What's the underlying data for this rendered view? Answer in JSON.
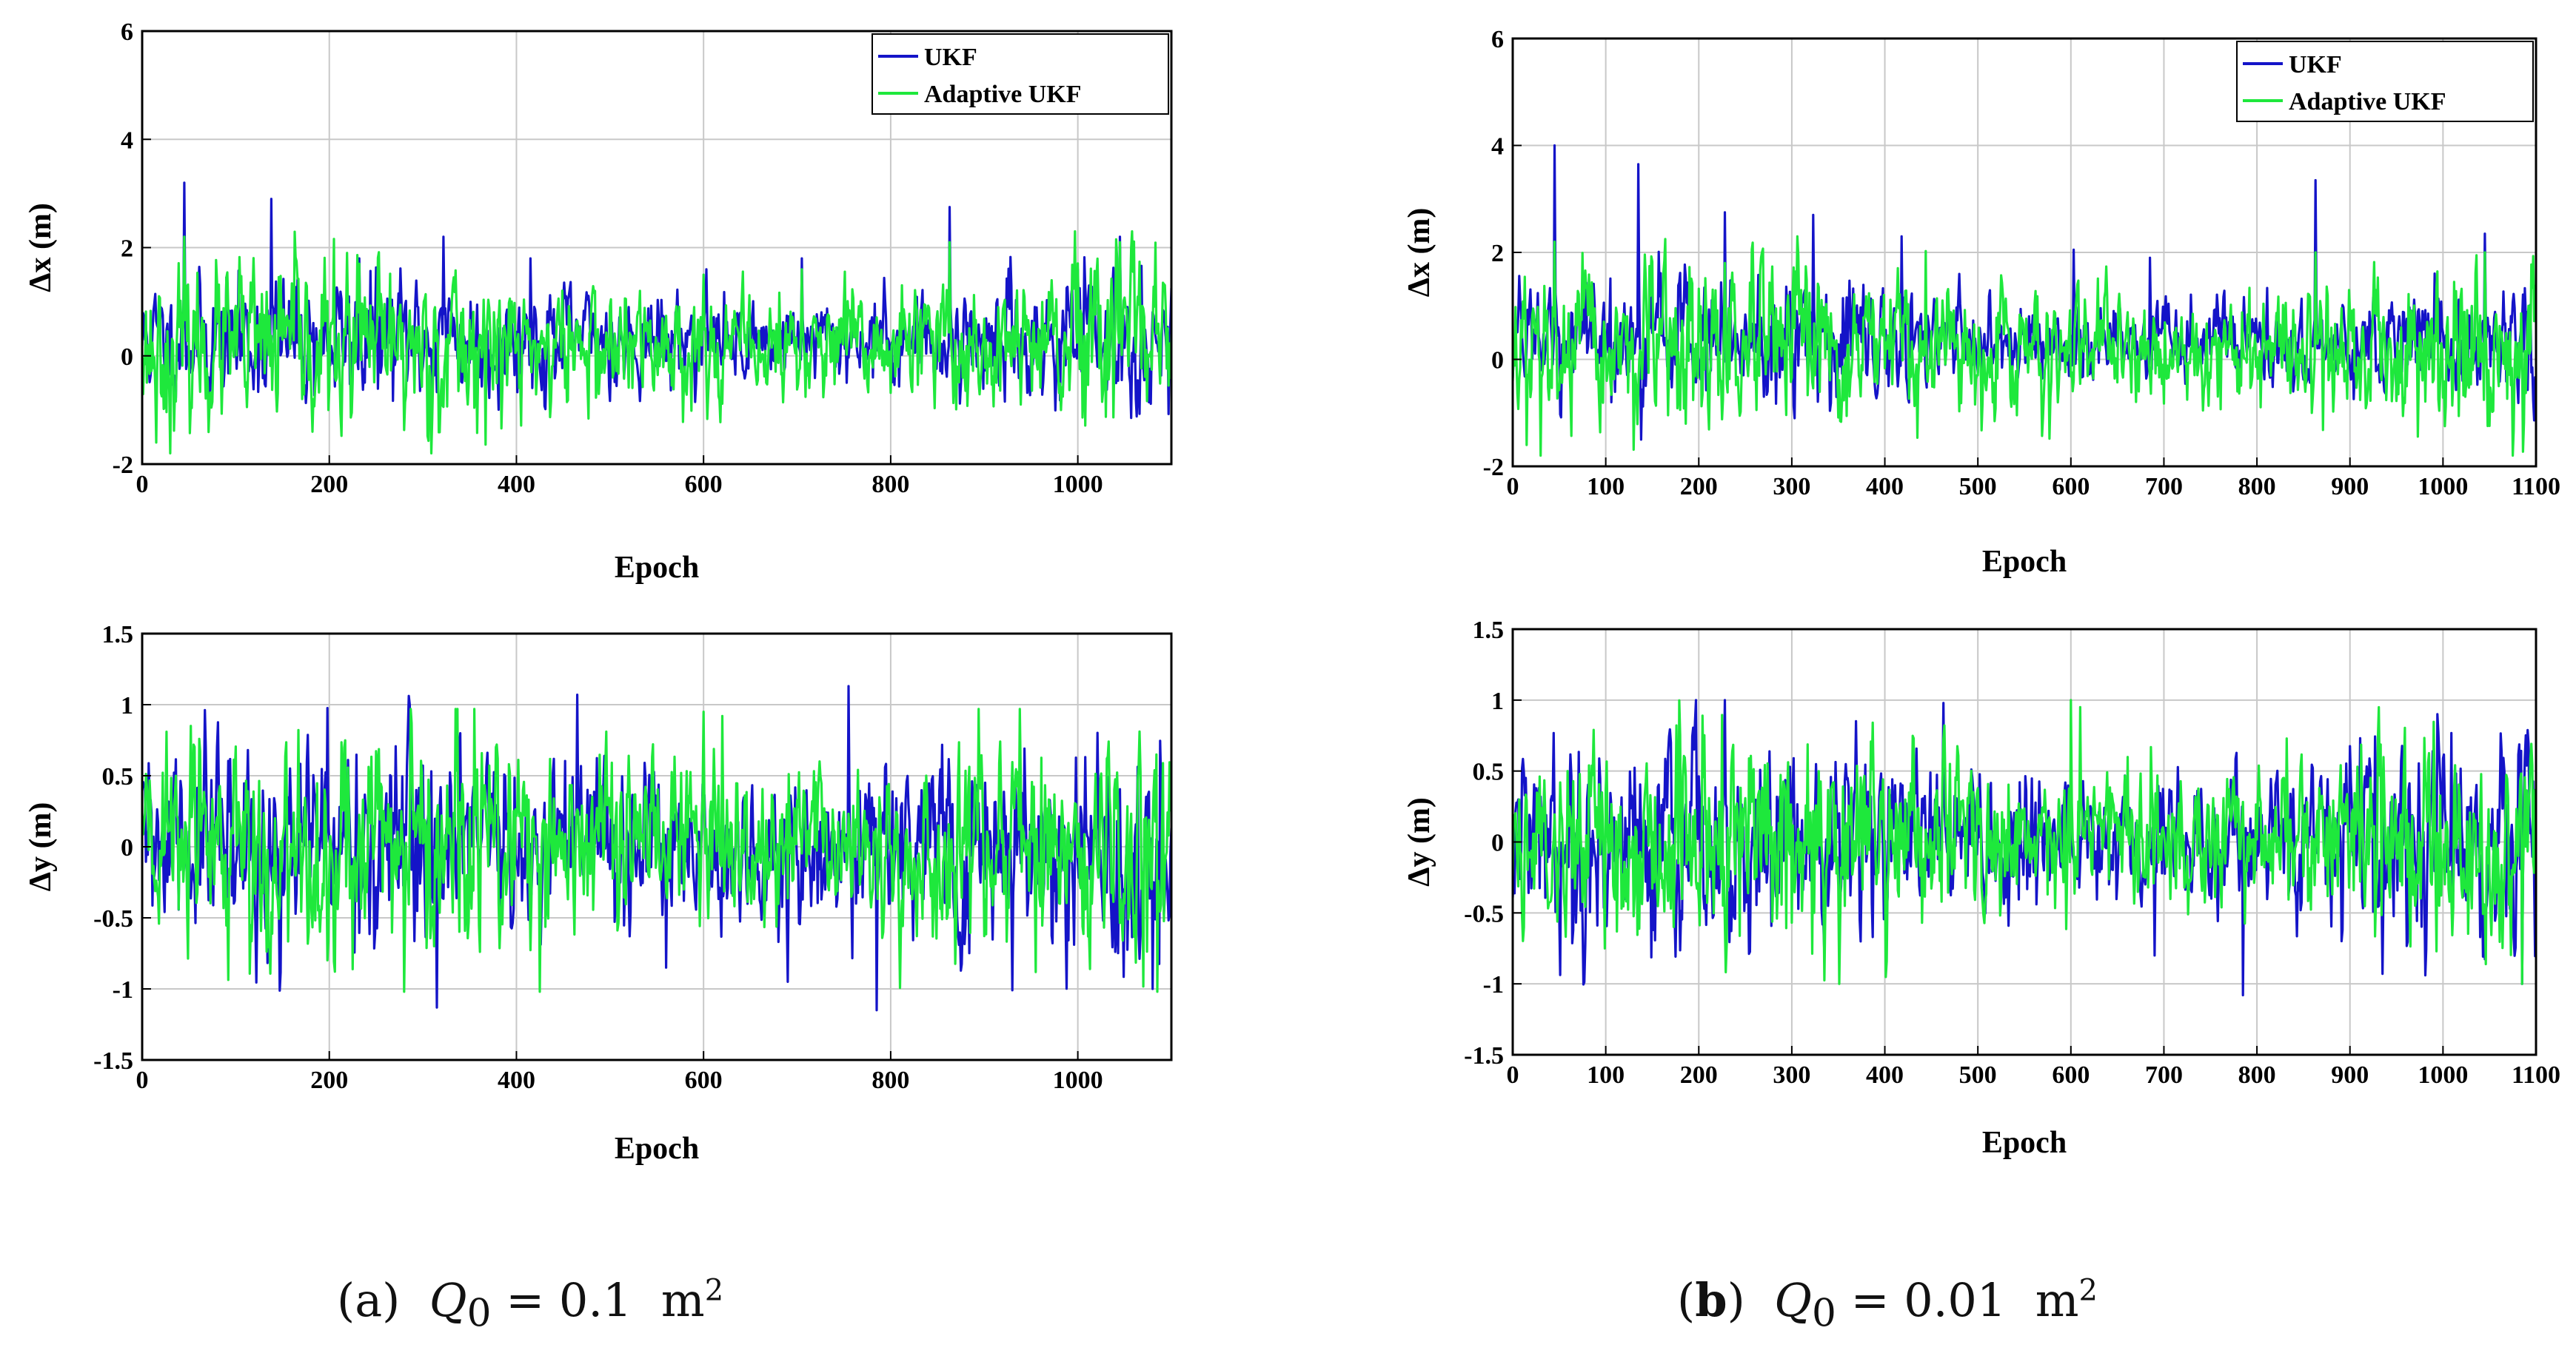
{
  "colors": {
    "ukf": "#1414c8",
    "adaptive_ukf": "#1ee83c",
    "grid": "#c8c8c8",
    "axes": "#000000"
  },
  "captions": [
    {
      "label": "a",
      "symbol": "Q",
      "subscript": "0",
      "equals": "=",
      "value": "0.1",
      "unit": "m",
      "unit_exp": "2"
    },
    {
      "label": "b",
      "symbol": "Q",
      "subscript": "0",
      "equals": "=",
      "value": "0.01",
      "unit": "m",
      "unit_exp": "2"
    }
  ],
  "chart_data": [
    {
      "id": "a-dx",
      "type": "line",
      "panel": "a",
      "title": "",
      "xlabel": "Epoch",
      "ylabel": "Δx (m)",
      "xlim": [
        0,
        1100
      ],
      "ylim": [
        -2,
        6
      ],
      "xticks": [
        0,
        200,
        400,
        600,
        800,
        1000
      ],
      "yticks": [
        -2,
        0,
        2,
        4,
        6
      ],
      "grid": true,
      "legend": "top-right",
      "series": [
        {
          "name": "UKF",
          "color": "#1414c8",
          "seed": 11,
          "baseline": 0.3,
          "noise": 0.42,
          "clip": [
            -1.5,
            3.2
          ],
          "spikes": [
            [
              45,
              3.2
            ],
            [
              138,
              2.9
            ],
            [
              232,
              1.8
            ],
            [
              322,
              2.2
            ],
            [
              415,
              1.8
            ],
            [
              603,
              1.6
            ],
            [
              705,
              1.8
            ],
            [
              863,
              2.75
            ],
            [
              1000,
              1.6
            ],
            [
              1045,
              2.2
            ]
          ]
        },
        {
          "name": "Adaptive UKF",
          "color": "#1ee83c",
          "seed": 23,
          "baseline": 0.15,
          "noise": 0.55,
          "clip": [
            -1.8,
            2.3
          ],
          "spikes": [
            [
              15,
              -1.6
            ],
            [
              30,
              -1.8
            ],
            [
              45,
              2.2
            ],
            [
              232,
              1.7
            ],
            [
              600,
              1.5
            ],
            [
              705,
              1.6
            ],
            [
              863,
              2.1
            ],
            [
              1045,
              2.1
            ]
          ]
        }
      ]
    },
    {
      "id": "a-dy",
      "type": "line",
      "panel": "a",
      "title": "",
      "xlabel": "Epoch",
      "ylabel": "Δy (m)",
      "xlim": [
        0,
        1100
      ],
      "ylim": [
        -1.5,
        1.5
      ],
      "xticks": [
        0,
        200,
        400,
        600,
        800,
        1000
      ],
      "yticks": [
        -1.5,
        -1,
        -0.5,
        0,
        0.5,
        1,
        1.5
      ],
      "grid": true,
      "legend": "none",
      "series": [
        {
          "name": "UKF",
          "color": "#1414c8",
          "seed": 31,
          "baseline": 0.0,
          "noise": 0.28,
          "clip": [
            -1.15,
            1.15
          ],
          "spikes": [
            [
              465,
              1.07
            ],
            [
              560,
              -0.85
            ],
            [
              755,
              1.13
            ],
            [
              785,
              -1.15
            ],
            [
              690,
              -0.95
            ],
            [
              1080,
              -1.0
            ]
          ]
        },
        {
          "name": "Adaptive UKF",
          "color": "#1ee83c",
          "seed": 43,
          "baseline": 0.02,
          "noise": 0.3,
          "clip": [
            -1.02,
            0.97
          ],
          "spikes": [
            [
              355,
              0.97
            ],
            [
              600,
              0.95
            ],
            [
              620,
              0.92
            ],
            [
              1085,
              -1.02
            ]
          ]
        }
      ]
    },
    {
      "id": "b-dx",
      "type": "line",
      "panel": "b",
      "title": "",
      "xlabel": "Epoch",
      "ylabel": "Δx (m)",
      "xlim": [
        0,
        1100
      ],
      "ylim": [
        -2,
        6
      ],
      "xticks": [
        0,
        100,
        200,
        300,
        400,
        500,
        600,
        700,
        800,
        900,
        1000,
        1100
      ],
      "yticks": [
        -2,
        0,
        2,
        4,
        6
      ],
      "grid": true,
      "legend": "top-right",
      "series": [
        {
          "name": "UKF",
          "color": "#1414c8",
          "seed": 57,
          "baseline": 0.3,
          "noise": 0.42,
          "clip": [
            -1.5,
            4.0
          ],
          "spikes": [
            [
              45,
              4.0
            ],
            [
              135,
              3.65
            ],
            [
              228,
              2.75
            ],
            [
              323,
              2.7
            ],
            [
              418,
              2.3
            ],
            [
              603,
              2.05
            ],
            [
              685,
              1.9
            ],
            [
              863,
              3.35
            ],
            [
              1045,
              2.35
            ]
          ]
        },
        {
          "name": "Adaptive UKF",
          "color": "#1ee83c",
          "seed": 67,
          "baseline": 0.15,
          "noise": 0.55,
          "clip": [
            -1.8,
            2.3
          ],
          "spikes": [
            [
              15,
              -1.6
            ],
            [
              30,
              -1.8
            ],
            [
              45,
              2.2
            ],
            [
              228,
              1.8
            ],
            [
              863,
              2.0
            ],
            [
              1045,
              2.0
            ]
          ]
        }
      ]
    },
    {
      "id": "b-dy",
      "type": "line",
      "panel": "b",
      "title": "",
      "xlabel": "Epoch",
      "ylabel": "Δy (m)",
      "xlim": [
        0,
        1100
      ],
      "ylim": [
        -1.5,
        1.5
      ],
      "xticks": [
        0,
        100,
        200,
        300,
        400,
        500,
        600,
        700,
        800,
        900,
        1000,
        1100
      ],
      "yticks": [
        -1.5,
        -1,
        -0.5,
        0,
        0.5,
        1,
        1.5
      ],
      "grid": true,
      "legend": "none",
      "series": [
        {
          "name": "UKF",
          "color": "#1414c8",
          "seed": 79,
          "baseline": 0.02,
          "noise": 0.27,
          "clip": [
            -1.08,
            1.0
          ],
          "spikes": [
            [
              228,
              1.0
            ],
            [
              463,
              0.98
            ],
            [
              785,
              -1.08
            ],
            [
              690,
              -0.8
            ],
            [
              1085,
              -1.0
            ]
          ]
        },
        {
          "name": "Adaptive UKF",
          "color": "#1ee83c",
          "seed": 89,
          "baseline": 0.03,
          "noise": 0.28,
          "clip": [
            -1.0,
            1.0
          ],
          "spikes": [
            [
              600,
              1.0
            ],
            [
              610,
              0.95
            ],
            [
              1085,
              -1.0
            ]
          ]
        }
      ]
    }
  ]
}
